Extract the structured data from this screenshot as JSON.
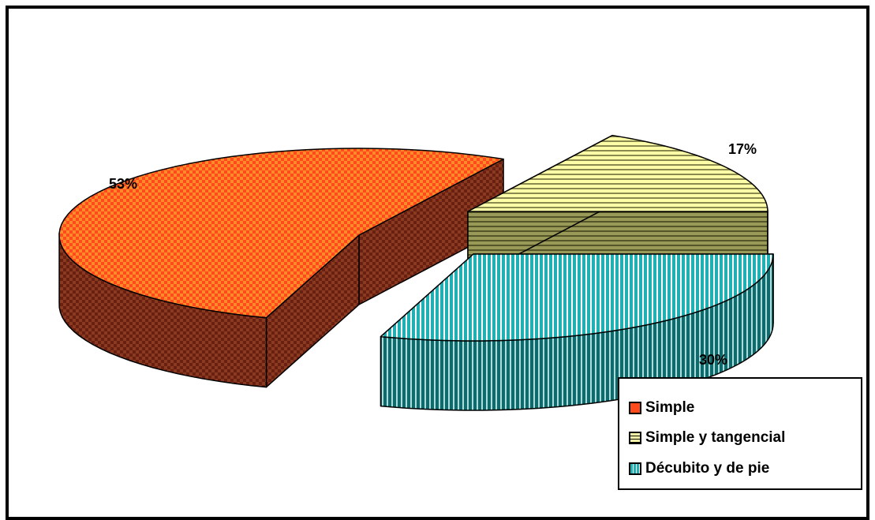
{
  "chart_data": {
    "type": "pie",
    "title": "",
    "categories": [
      "Simple",
      "Simple y tangencial",
      "Décubito y de pie"
    ],
    "values": [
      53,
      17,
      30
    ],
    "data_labels": [
      "53%",
      "17%",
      "30%"
    ],
    "colors": [
      "#ff4a1c",
      "#ffff99",
      "#1ea3a6"
    ],
    "legend_position": "bottom-right",
    "style": "3d-exploded"
  }
}
